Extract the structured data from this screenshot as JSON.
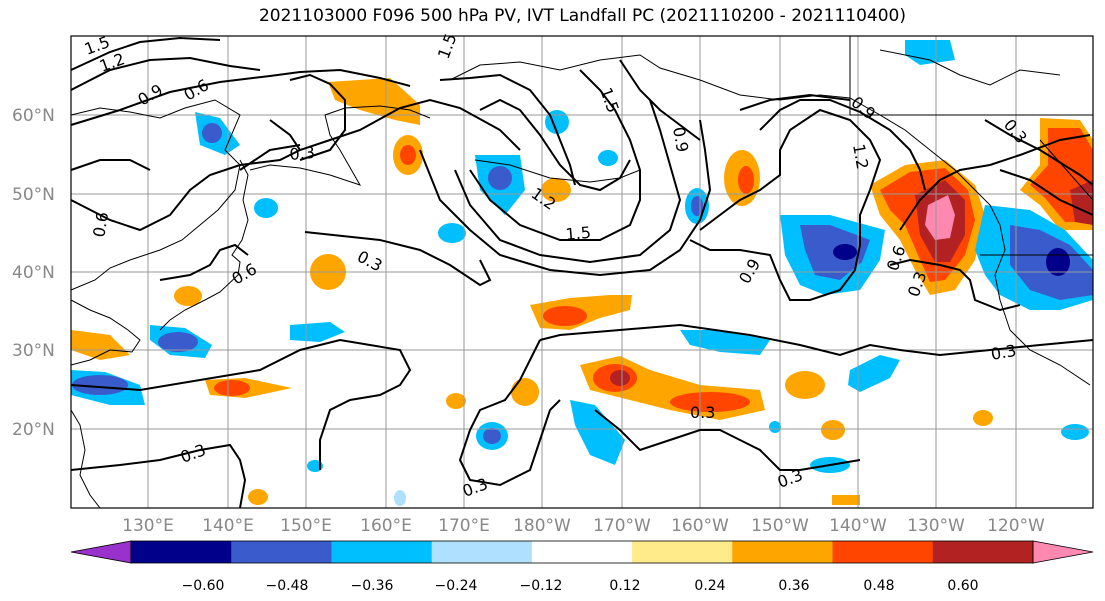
{
  "title": "2021103000 F096 500 hPa PV, IVT Landfall PC (2021110200 - 2021110400)",
  "lat_labels": [
    "60°N",
    "50°N",
    "40°N",
    "30°N",
    "20°N"
  ],
  "lon_labels": [
    "130°E",
    "140°E",
    "150°E",
    "160°E",
    "170°E",
    "180°W",
    "170°W",
    "160°W",
    "150°W",
    "140°W",
    "130°W",
    "120°W"
  ],
  "contour_labels": [
    "1.5",
    "1.2",
    "0.9",
    "0.6",
    "0.3",
    "0.3",
    "1.5",
    "1.2",
    "1.5",
    "0.9",
    "0.3",
    "0.6",
    "0.6",
    "0.3",
    "0.3",
    "0.9",
    "1.2",
    "0.3",
    "0.3",
    "0.3",
    "0.3",
    "0.6",
    "0.9",
    "1.5"
  ],
  "colorbar": {
    "colors": [
      "#9932CC",
      "#00008B",
      "#3A5BCC",
      "#00BFFF",
      "#B0E0FF",
      "#FFFFFF",
      "#FFEB8A",
      "#FFA500",
      "#FF4500",
      "#B22222",
      "#FF88B0"
    ],
    "ticks": [
      "−0.60",
      "−0.48",
      "−0.36",
      "−0.24",
      "−0.12",
      "0.12",
      "0.24",
      "0.36",
      "0.48",
      "0.60"
    ]
  }
}
